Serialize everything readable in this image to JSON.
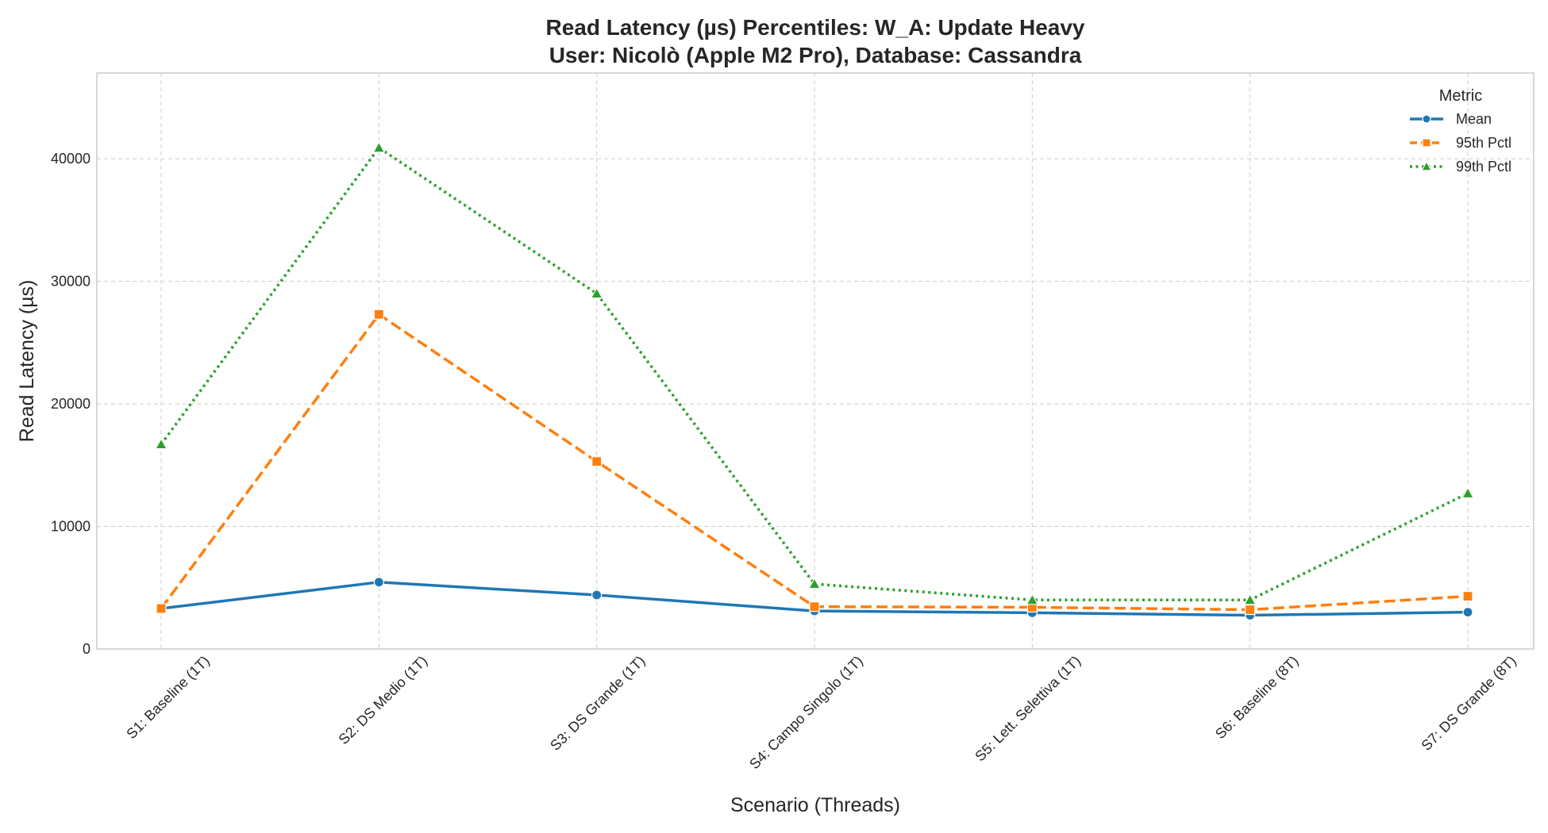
{
  "chart_data": {
    "type": "line",
    "title_line1": "Read Latency (µs) Percentiles: W_A: Update Heavy",
    "title_line2": "User: Nicolò (Apple M2 Pro), Database: Cassandra",
    "xlabel": "Scenario (Threads)",
    "ylabel": "Read Latency (µs)",
    "ylim": [
      0,
      47000
    ],
    "yticks": [
      0,
      10000,
      20000,
      30000,
      40000
    ],
    "grid": true,
    "legend_title": "Metric",
    "legend_position": "top-right",
    "categories": [
      "S1: Baseline (1T)",
      "S2: DS Medio (1T)",
      "S3: DS Grande (1T)",
      "S4: Campo Singolo (1T)",
      "S5: Lett. Selettiva (1T)",
      "S6: Baseline (8T)",
      "S7: DS Grande (8T)"
    ],
    "series": [
      {
        "name": "Mean",
        "color": "#1f77b4",
        "style": "solid",
        "marker": "circle",
        "values": [
          3300,
          5450,
          4400,
          3100,
          2950,
          2750,
          3000
        ]
      },
      {
        "name": "95th Pctl",
        "color": "#ff7f0e",
        "style": "dashed",
        "marker": "square",
        "values": [
          3300,
          27300,
          15300,
          3450,
          3400,
          3200,
          4300
        ]
      },
      {
        "name": "99th Pctl",
        "color": "#2ca02c",
        "style": "dotted",
        "marker": "triangle",
        "values": [
          16700,
          40900,
          29000,
          5300,
          4000,
          4000,
          12700
        ]
      }
    ]
  }
}
